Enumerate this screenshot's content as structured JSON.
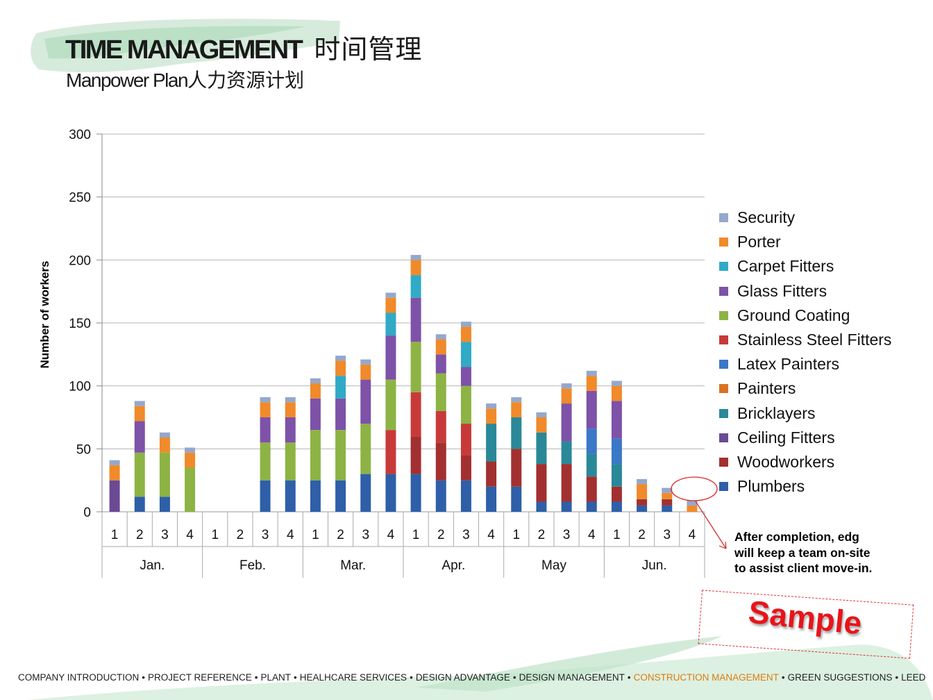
{
  "header": {
    "title_en": "TIME MANAGEMENT",
    "title_cn": "时间管理",
    "subtitle_en": "Manpower Plan",
    "subtitle_cn": "人力资源计划"
  },
  "chart_data": {
    "type": "bar",
    "stacked": true,
    "ylabel": "Number of workers",
    "ylim": [
      0,
      300
    ],
    "yticks": [
      0,
      50,
      100,
      150,
      200,
      250,
      300
    ],
    "grid": true,
    "legend_position": "right",
    "groups": [
      "Jan.",
      "Feb.",
      "Mar.",
      "Apr.",
      "May",
      "Jun."
    ],
    "categories": [
      "1",
      "2",
      "3",
      "4",
      "1",
      "2",
      "3",
      "4",
      "1",
      "2",
      "3",
      "4",
      "1",
      "2",
      "3",
      "4",
      "1",
      "2",
      "3",
      "4",
      "1",
      "2",
      "3",
      "4"
    ],
    "series": [
      {
        "name": "Plumbers",
        "color": "#2e5fa8",
        "values": [
          0,
          12,
          12,
          0,
          0,
          0,
          25,
          25,
          25,
          25,
          30,
          30,
          30,
          25,
          25,
          20,
          20,
          8,
          8,
          8,
          8,
          5,
          5,
          0
        ]
      },
      {
        "name": "Woodworkers",
        "color": "#a33030",
        "values": [
          0,
          0,
          0,
          0,
          0,
          0,
          0,
          0,
          0,
          0,
          0,
          0,
          30,
          30,
          20,
          20,
          30,
          30,
          30,
          20,
          12,
          5,
          5,
          0
        ]
      },
      {
        "name": "Ceiling Fitters",
        "color": "#6b4a94",
        "values": [
          25,
          0,
          0,
          0,
          0,
          0,
          0,
          0,
          0,
          0,
          0,
          0,
          0,
          0,
          0,
          0,
          0,
          0,
          0,
          0,
          0,
          0,
          0,
          0
        ]
      },
      {
        "name": "Bricklayers",
        "color": "#2a8898",
        "values": [
          0,
          0,
          0,
          0,
          0,
          0,
          0,
          0,
          0,
          0,
          0,
          0,
          0,
          0,
          0,
          30,
          25,
          25,
          18,
          18,
          18,
          0,
          0,
          0
        ]
      },
      {
        "name": "Painters",
        "color": "#d97324",
        "values": [
          0,
          0,
          0,
          0,
          0,
          0,
          0,
          0,
          0,
          0,
          0,
          0,
          0,
          0,
          0,
          0,
          0,
          0,
          0,
          0,
          0,
          0,
          0,
          0
        ]
      },
      {
        "name": "Latex Painters",
        "color": "#3a78c8",
        "values": [
          0,
          0,
          0,
          0,
          0,
          0,
          0,
          0,
          0,
          0,
          0,
          0,
          0,
          0,
          0,
          0,
          0,
          0,
          0,
          20,
          20,
          0,
          0,
          0
        ]
      },
      {
        "name": "Stainless Steel Fitters",
        "color": "#c83a3a",
        "values": [
          0,
          0,
          0,
          0,
          0,
          0,
          0,
          0,
          0,
          0,
          0,
          35,
          35,
          25,
          25,
          0,
          0,
          0,
          0,
          0,
          0,
          0,
          0,
          0
        ]
      },
      {
        "name": "Ground Coating",
        "color": "#8db345",
        "values": [
          0,
          35,
          35,
          35,
          0,
          0,
          30,
          30,
          40,
          40,
          40,
          40,
          40,
          30,
          30,
          0,
          0,
          0,
          0,
          0,
          0,
          0,
          0,
          0
        ]
      },
      {
        "name": "Glass Fitters",
        "color": "#7d52a8",
        "values": [
          0,
          25,
          0,
          0,
          0,
          0,
          20,
          20,
          25,
          25,
          35,
          35,
          35,
          15,
          15,
          0,
          0,
          0,
          30,
          30,
          30,
          0,
          0,
          0
        ]
      },
      {
        "name": "Carpet Fitters",
        "color": "#31aac6",
        "values": [
          0,
          0,
          0,
          0,
          0,
          0,
          0,
          0,
          0,
          18,
          0,
          18,
          18,
          0,
          20,
          0,
          0,
          0,
          0,
          0,
          0,
          0,
          0,
          0
        ]
      },
      {
        "name": "Porter",
        "color": "#f08a2a",
        "values": [
          12,
          12,
          12,
          12,
          0,
          0,
          12,
          12,
          12,
          12,
          12,
          12,
          12,
          12,
          12,
          12,
          12,
          12,
          12,
          12,
          12,
          12,
          5,
          5
        ]
      },
      {
        "name": "Security",
        "color": "#94a8cc",
        "values": [
          4,
          4,
          4,
          4,
          0,
          0,
          4,
          4,
          4,
          4,
          4,
          4,
          4,
          4,
          4,
          4,
          4,
          4,
          4,
          4,
          4,
          4,
          4,
          4
        ]
      }
    ],
    "annotation": "After completion, edg\nwill keep a team on-site\nto assist client move-in.",
    "stamp": "Sample"
  },
  "footer": {
    "items": [
      "COMPANY INTRODUCTION",
      "PROJECT REFERENCE",
      "PLANT",
      "HEALHCARE SERVICES",
      "DESIGN ADVANTAGE",
      "DESIGN MANAGEMENT",
      "CONSTRUCTION MANAGEMENT",
      "GREEN SUGGESTIONS",
      "LEED"
    ],
    "active_index": 6,
    "active_color": "#e07a10",
    "separator": "•"
  }
}
